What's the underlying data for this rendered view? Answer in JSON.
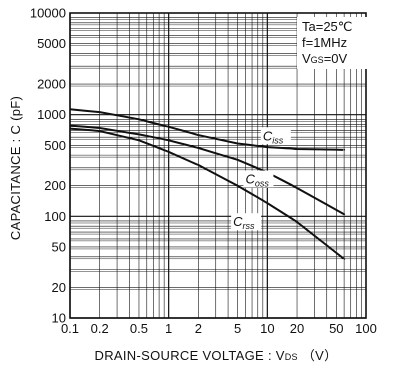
{
  "chart_data": {
    "type": "line",
    "x_scale": "log",
    "y_scale": "log",
    "xlim": [
      0.1,
      100
    ],
    "ylim": [
      10,
      10000
    ],
    "grid": true,
    "xlabel": "DRAIN-SOURCE  VOLTAGE : V",
    "xlabel_sub": "DS",
    "xlabel_unit": "（V）",
    "ylabel": "CAPACITANCE : C  (pF)",
    "x_ticks": [
      {
        "value": 0.1,
        "label": "0.1"
      },
      {
        "value": 0.2,
        "label": "0.2"
      },
      {
        "value": 0.5,
        "label": "0.5"
      },
      {
        "value": 1,
        "label": "1"
      },
      {
        "value": 2,
        "label": "2"
      },
      {
        "value": 5,
        "label": "5"
      },
      {
        "value": 10,
        "label": "10"
      },
      {
        "value": 20,
        "label": "20"
      },
      {
        "value": 50,
        "label": "50"
      },
      {
        "value": 100,
        "label": "100"
      }
    ],
    "y_ticks": [
      {
        "value": 10,
        "label": "10"
      },
      {
        "value": 20,
        "label": "20"
      },
      {
        "value": 50,
        "label": "50"
      },
      {
        "value": 100,
        "label": "100"
      },
      {
        "value": 200,
        "label": "200"
      },
      {
        "value": 500,
        "label": "500"
      },
      {
        "value": 1000,
        "label": "1000"
      },
      {
        "value": 2000,
        "label": "2000"
      },
      {
        "value": 5000,
        "label": "5000"
      },
      {
        "value": 10000,
        "label": "10000"
      }
    ],
    "conditions": [
      "Ta=25℃",
      "f=1MHz",
      "V"
    ],
    "condition_vgs": {
      "prefix": "V",
      "sub": "GS",
      "suffix": "=0V"
    },
    "series": [
      {
        "name": "C",
        "sub": "iss",
        "x": [
          0.1,
          0.2,
          0.5,
          1,
          2,
          5,
          10,
          20,
          60
        ],
        "y": [
          1130,
          1060,
          900,
          760,
          630,
          520,
          480,
          460,
          450
        ],
        "label_at": {
          "x": 9,
          "y": 560
        }
      },
      {
        "name": "C",
        "sub": "oss",
        "x": [
          0.1,
          0.2,
          0.5,
          1,
          2,
          5,
          10,
          20,
          60
        ],
        "y": [
          780,
          740,
          640,
          560,
          470,
          360,
          270,
          190,
          105
        ],
        "label_at": {
          "x": 6,
          "y": 210
        }
      },
      {
        "name": "C",
        "sub": "rss",
        "x": [
          0.1,
          0.2,
          0.5,
          1,
          2,
          5,
          10,
          20,
          60
        ],
        "y": [
          730,
          690,
          560,
          430,
          320,
          200,
          135,
          88,
          38
        ],
        "label_at": {
          "x": 4.5,
          "y": 80
        }
      }
    ]
  }
}
